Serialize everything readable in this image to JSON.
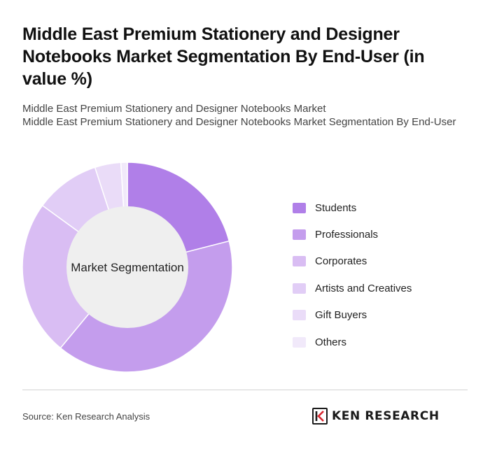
{
  "page": {
    "title": "Middle East Premium Stationery and Designer Notebooks Market Segmentation By End-User (in value %)",
    "subtitle_line1": "Middle East Premium Stationery and Designer Notebooks Market",
    "subtitle_line2": "Middle East Premium Stationery and Designer Notebooks Market Segmentation By End-User",
    "source": "Source: Ken Research Analysis",
    "brand": "KEN RESEARCH"
  },
  "chart_data": {
    "type": "pie",
    "center_label": "Market Segmentation",
    "categories": [
      "Students",
      "Professionals",
      "Corporates",
      "Artists and Creatives",
      "Gift Buyers",
      "Others"
    ],
    "values": [
      21,
      40,
      24,
      10,
      4,
      1
    ],
    "colors": [
      "#b07fe8",
      "#c49ded",
      "#d9bdf3",
      "#e1cdf6",
      "#eadcf8",
      "#f1e9fa"
    ],
    "legend_position": "right"
  }
}
